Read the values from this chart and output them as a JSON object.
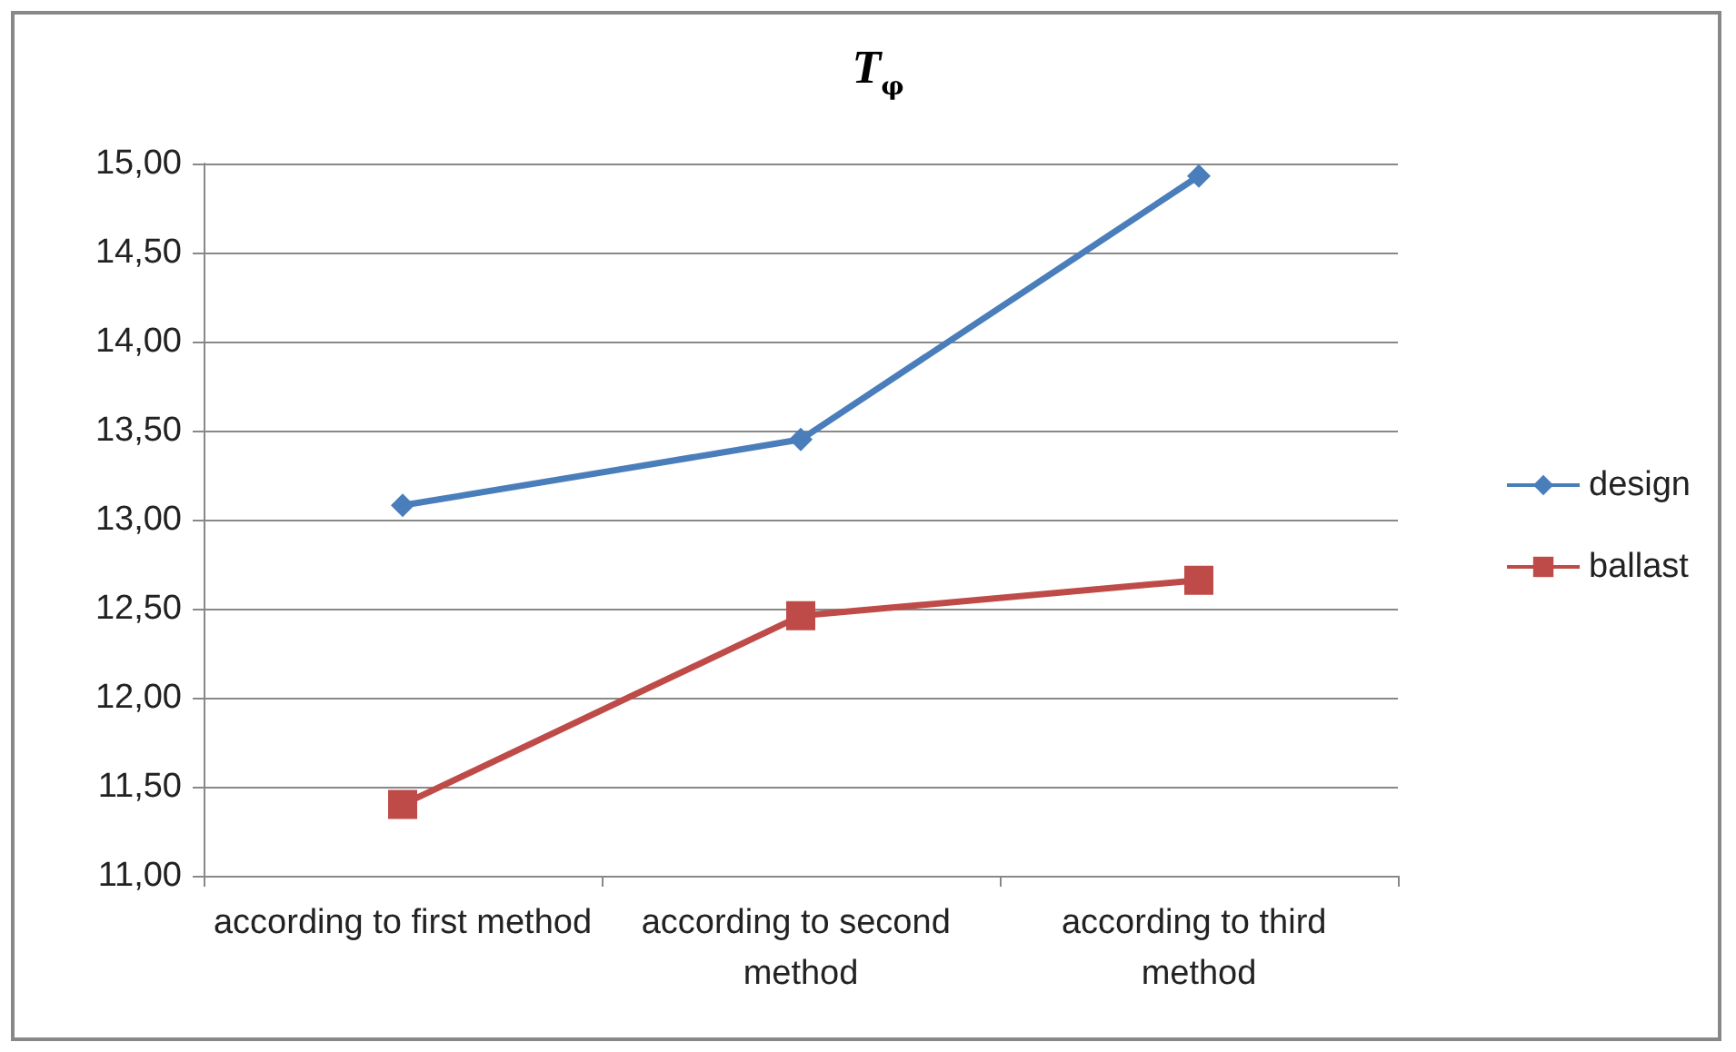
{
  "chart_data": {
    "type": "line",
    "title": "T$_{φ}$",
    "categories": [
      "according to first method",
      "according to second method",
      "according to third method"
    ],
    "series": [
      {
        "name": "design",
        "color": "#4a7ebb",
        "marker": "diamond",
        "values": [
          13.08,
          13.45,
          14.93
        ]
      },
      {
        "name": "ballast",
        "color": "#be4b48",
        "marker": "square",
        "values": [
          11.4,
          12.46,
          12.66
        ]
      }
    ],
    "ylim": [
      11,
      15
    ],
    "yticks": [
      {
        "value": 11,
        "label": "11,00"
      },
      {
        "value": 11.5,
        "label": "11,50"
      },
      {
        "value": 12,
        "label": "12,00"
      },
      {
        "value": 12.5,
        "label": "12,50"
      },
      {
        "value": 13,
        "label": "13,00"
      },
      {
        "value": 13.5,
        "label": "13,50"
      },
      {
        "value": 14,
        "label": "14,00"
      },
      {
        "value": 14.5,
        "label": "14,50"
      },
      {
        "value": 15,
        "label": "15,00"
      }
    ],
    "grid": "y",
    "legend": "right",
    "line_style": "solid"
  }
}
